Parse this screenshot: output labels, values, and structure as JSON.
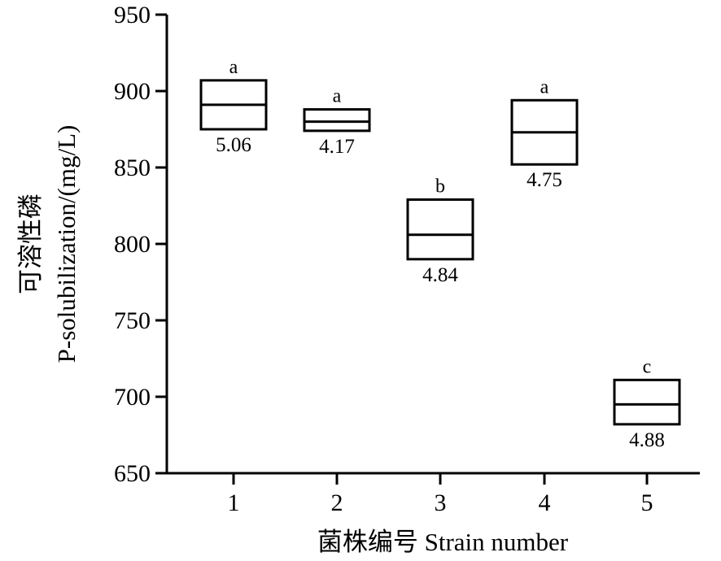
{
  "chart_data": {
    "type": "box",
    "xlabel": "菌株编号 Strain number",
    "ylabel_line1": "可溶性磷",
    "ylabel_line2": "P-solubilization/(mg/L)",
    "ylim": [
      650,
      950
    ],
    "yticks": [
      650,
      700,
      750,
      800,
      850,
      900,
      950
    ],
    "categories": [
      "1",
      "2",
      "3",
      "4",
      "5"
    ],
    "boxes": [
      {
        "category": "1",
        "low": 875,
        "median": 891,
        "high": 907,
        "letter": "a",
        "ph": "5.06"
      },
      {
        "category": "2",
        "low": 874,
        "median": 880,
        "high": 888,
        "letter": "a",
        "ph": "4.17"
      },
      {
        "category": "3",
        "low": 790,
        "median": 806,
        "high": 829,
        "letter": "b",
        "ph": "4.84"
      },
      {
        "category": "4",
        "low": 852,
        "median": 873,
        "high": 894,
        "letter": "a",
        "ph": "4.75"
      },
      {
        "category": "5",
        "low": 682,
        "median": 695,
        "high": 711,
        "letter": "c",
        "ph": "4.88"
      }
    ],
    "grid": false,
    "legend": "none"
  }
}
